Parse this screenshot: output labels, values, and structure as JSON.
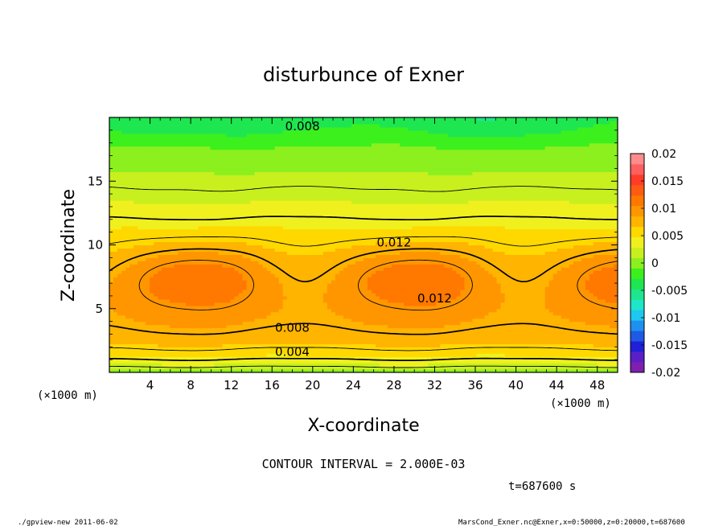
{
  "chart_data": {
    "type": "contour",
    "title": "disturbunce of Exner",
    "xlabel": "X-coordinate",
    "ylabel": "Z-coordinate",
    "x_unit": "(×1000 m)",
    "y_unit": "(×1000 m)",
    "xlim": [
      0,
      50
    ],
    "ylim": [
      0,
      20
    ],
    "x_ticks": [
      4,
      8,
      12,
      16,
      20,
      24,
      28,
      32,
      36,
      40,
      44,
      48
    ],
    "x_tick_labels": [
      "4",
      "8",
      "12",
      "16",
      "20",
      "24",
      "28",
      "32",
      "36",
      "40",
      "44",
      "48"
    ],
    "y_ticks": [
      5,
      10,
      15
    ],
    "y_tick_labels": [
      "5",
      "10",
      "15"
    ],
    "contour_interval_text": "CONTOUR INTERVAL = 2.000E-03",
    "contour_labels": [
      {
        "text": "0.008",
        "x": 19,
        "z": 19.3
      },
      {
        "text": "0.012",
        "x": 28,
        "z": 10.2
      },
      {
        "text": "0.012",
        "x": 32,
        "z": 5.8
      },
      {
        "text": "0.008",
        "x": 18,
        "z": 3.5
      },
      {
        "text": "0.004",
        "x": 18,
        "z": 1.6
      }
    ],
    "colorbar": {
      "min": -0.02,
      "max": 0.02,
      "tick_labels": [
        "0.02",
        "0.015",
        "0.01",
        "0.005",
        "0",
        "-0.005",
        "-0.01",
        "-0.015",
        "-0.02"
      ],
      "colors": [
        "#7f1faf",
        "#5a1fc8",
        "#2020d8",
        "#1e5ae6",
        "#1e90f0",
        "#1ec8f0",
        "#1ee6c8",
        "#1ee68c",
        "#1ee650",
        "#3cf01e",
        "#8cf01e",
        "#c8f01e",
        "#f0f01e",
        "#ffd800",
        "#ffb400",
        "#ff9600",
        "#ff7800",
        "#ff5a14",
        "#ff3c28",
        "#ff5f5f",
        "#ff8c8c"
      ]
    }
  },
  "footer": {
    "time": "t=687600 s",
    "left": "./gpview-new   2011-06-02",
    "right": "MarsCond_Exner.nc@Exner,x=0:50000,z=0:20000,t=687600"
  }
}
